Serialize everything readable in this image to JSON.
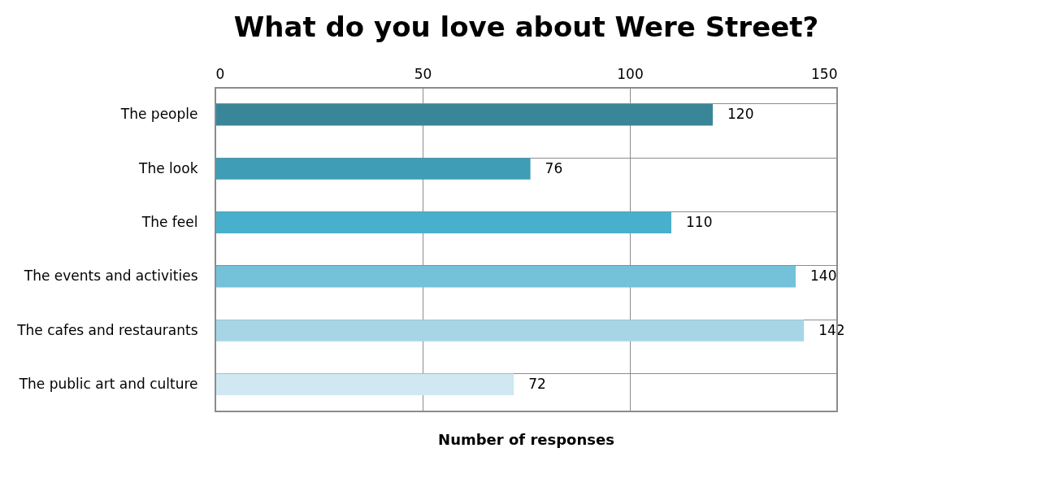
{
  "chart_data": {
    "type": "bar",
    "orientation": "horizontal",
    "title": "What do you love about Were Street?",
    "xlabel": "Number of responses",
    "categories": [
      "The people",
      "The look",
      "The feel",
      "The events and activities",
      "The cafes and restaurants",
      "The public art and culture"
    ],
    "values": [
      120,
      76,
      110,
      140,
      142,
      72
    ],
    "colors": [
      "#3a8699",
      "#3f9db5",
      "#48b0cc",
      "#74c2da",
      "#a6d6e6",
      "#cfe8f1"
    ],
    "xlim": [
      0,
      150
    ],
    "xticks": [
      0,
      50,
      100,
      150
    ],
    "grid": true,
    "data_labels": true
  }
}
